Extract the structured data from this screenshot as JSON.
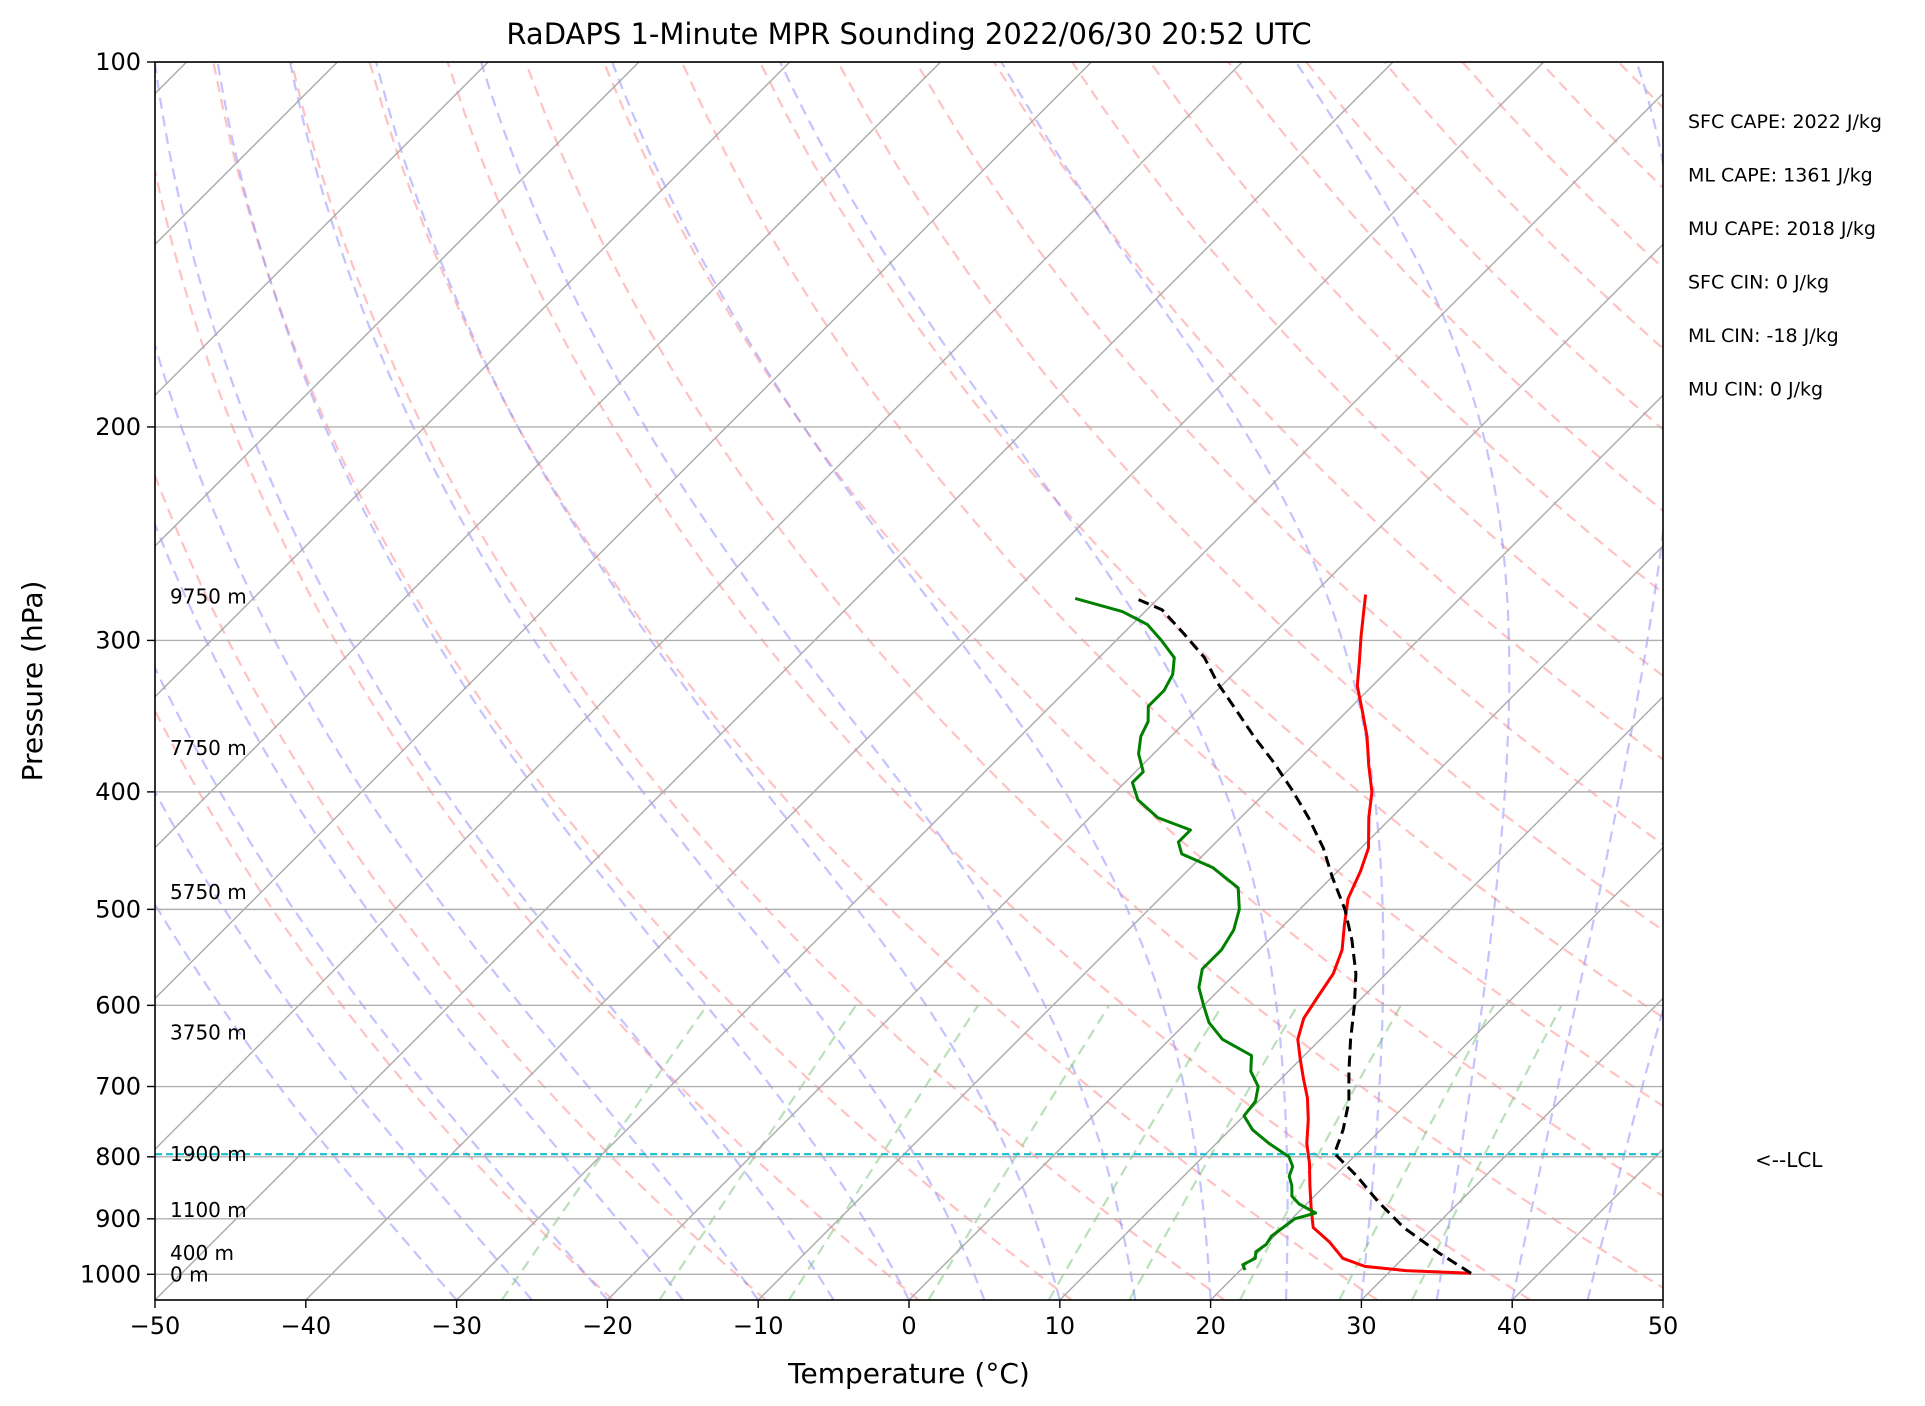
{
  "chart_data": {
    "type": "line",
    "title": "RaDAPS 1-Minute MPR Sounding 2022/06/30 20:52 UTC",
    "xlabel": "Temperature (°C)",
    "ylabel": "Pressure (hPa)",
    "xlim": [
      -50,
      50
    ],
    "ylim": [
      1050,
      100
    ],
    "y_scale": "log",
    "x_ticks": [
      -50,
      -40,
      -30,
      -20,
      -10,
      0,
      10,
      20,
      30,
      40,
      50
    ],
    "x_tick_labels": [
      "−50",
      "−40",
      "−30",
      "−20",
      "−10",
      "0",
      "10",
      "20",
      "30",
      "40",
      "50"
    ],
    "y_ticks": [
      100,
      200,
      300,
      400,
      500,
      600,
      700,
      800,
      900,
      1000
    ],
    "y_tick_labels": [
      "100",
      "200",
      "300",
      "400",
      "500",
      "600",
      "700",
      "800",
      "900",
      "1000"
    ],
    "skew_degrees": 45,
    "grid": true,
    "reference_lines": {
      "dry_adiabats": "dashed light red",
      "moist_adiabats": "dashed light blue",
      "mixing_ratio": "dashed light green",
      "isotherms": "solid gray"
    },
    "series": [
      {
        "color": "#ff0000",
        "points": [
          [
            35.5,
            998
          ],
          [
            31,
            993
          ],
          [
            28,
            985
          ],
          [
            26,
            970
          ],
          [
            24,
            940
          ],
          [
            22,
            915
          ],
          [
            20.5,
            880
          ],
          [
            19,
            845
          ],
          [
            17.5,
            810
          ],
          [
            16,
            780
          ],
          [
            14.5,
            745
          ],
          [
            13,
            715
          ],
          [
            11.5,
            690
          ],
          [
            10,
            665
          ],
          [
            8.5,
            640
          ],
          [
            7.5,
            615
          ],
          [
            7,
            590
          ],
          [
            6.5,
            565
          ],
          [
            5.5,
            540
          ],
          [
            4,
            515
          ],
          [
            2.5,
            490
          ],
          [
            1.5,
            465
          ],
          [
            0.5,
            445
          ],
          [
            -1.5,
            420
          ],
          [
            -3,
            400
          ],
          [
            -5,
            380
          ],
          [
            -7,
            360
          ],
          [
            -9,
            343
          ],
          [
            -11,
            327
          ],
          [
            -12.5,
            312
          ],
          [
            -14,
            298
          ],
          [
            -15.5,
            284
          ],
          [
            -16.5,
            275
          ]
        ]
      },
      {
        "color": "#008000",
        "points": [
          [
            20.3,
            992
          ],
          [
            19.8,
            982
          ],
          [
            20.2,
            970
          ],
          [
            19.8,
            958
          ],
          [
            20.0,
            945
          ],
          [
            19.8,
            930
          ],
          [
            20.0,
            915
          ],
          [
            20.2,
            900
          ],
          [
            21.2,
            890
          ],
          [
            19.5,
            875
          ],
          [
            18.5,
            862
          ],
          [
            17.8,
            845
          ],
          [
            17.0,
            830
          ],
          [
            16.6,
            815
          ],
          [
            15.7,
            800
          ],
          [
            13.5,
            780
          ],
          [
            11.5,
            760
          ],
          [
            10.0,
            740
          ],
          [
            9.8,
            720
          ],
          [
            9.0,
            700
          ],
          [
            7.5,
            680
          ],
          [
            6.5,
            660
          ],
          [
            3.5,
            640
          ],
          [
            1.5,
            620
          ],
          [
            0.0,
            600
          ],
          [
            -1.5,
            580
          ],
          [
            -2.5,
            560
          ],
          [
            -2.5,
            540
          ],
          [
            -3.0,
            520
          ],
          [
            -4.0,
            500
          ],
          [
            -5.5,
            480
          ],
          [
            -8.5,
            462
          ],
          [
            -11.5,
            450
          ],
          [
            -12.5,
            440
          ],
          [
            -12.5,
            430
          ],
          [
            -15.5,
            420
          ],
          [
            -18.0,
            406
          ],
          [
            -19.5,
            393
          ],
          [
            -19.5,
            385
          ],
          [
            -21,
            372
          ],
          [
            -22.0,
            360
          ],
          [
            -22.5,
            350
          ],
          [
            -23.5,
            340
          ],
          [
            -23.5,
            330
          ],
          [
            -24.0,
            320
          ],
          [
            -25.0,
            310
          ],
          [
            -27.0,
            300
          ],
          [
            -29.0,
            291
          ],
          [
            -31.5,
            284
          ],
          [
            -35.5,
            277
          ]
        ]
      },
      {
        "color": "#000000",
        "points": [
          [
            35.5,
            998
          ],
          [
            32,
            960
          ],
          [
            28,
            915
          ],
          [
            24.5,
            870
          ],
          [
            21.5,
            830
          ],
          [
            18.5,
            795
          ],
          [
            17.5,
            760
          ],
          [
            16,
            720
          ],
          [
            14,
            680
          ],
          [
            12,
            640
          ],
          [
            10,
            600
          ],
          [
            8,
            565
          ],
          [
            5.5,
            530
          ],
          [
            3,
            500
          ],
          [
            0,
            470
          ],
          [
            -2.5,
            445
          ],
          [
            -5.5,
            420
          ],
          [
            -8.5,
            398
          ],
          [
            -11.5,
            378
          ],
          [
            -14.5,
            360
          ],
          [
            -17.5,
            342
          ],
          [
            -20.5,
            325
          ],
          [
            -23,
            310
          ],
          [
            -26,
            296
          ],
          [
            -29,
            283
          ],
          [
            -31.5,
            277
          ]
        ]
      }
    ],
    "lcl": {
      "pressure": 796,
      "label": "<--LCL"
    },
    "height_labels": [
      {
        "p": 1000,
        "text": "0 m"
      },
      {
        "p": 960,
        "text": "400 m"
      },
      {
        "p": 885,
        "text": "1100 m"
      },
      {
        "p": 796,
        "text": "1900 m"
      },
      {
        "p": 632,
        "text": "3750 m"
      },
      {
        "p": 484,
        "text": "5750 m"
      },
      {
        "p": 368,
        "text": "7750 m"
      },
      {
        "p": 276,
        "text": "9750 m"
      }
    ],
    "annotations": [
      "SFC CAPE: 2022 J/kg",
      "ML CAPE: 1361 J/kg",
      "MU CAPE: 2018 J/kg",
      "SFC CIN: 0 J/kg",
      "ML CIN: -18 J/kg",
      "MU CIN: 0 J/kg"
    ]
  }
}
